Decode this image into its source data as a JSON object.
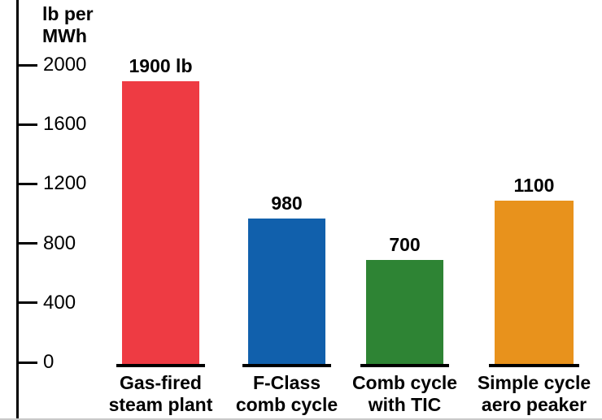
{
  "chart_data": {
    "type": "bar",
    "title": "",
    "ylabel": "lb per MWh",
    "ylabel_lines": [
      "lb per",
      "MWh"
    ],
    "ylim": [
      0,
      2000
    ],
    "yticks": [
      2000,
      1600,
      1200,
      800,
      400,
      0
    ],
    "grid": false,
    "legend": false,
    "categories": [
      "Gas-fired steam plant",
      "F-Class comb cycle",
      "Comb cycle with TIC",
      "Simple cycle aero peaker"
    ],
    "category_lines": [
      [
        "Gas-fired",
        "steam plant"
      ],
      [
        "F-Class",
        "comb cycle"
      ],
      [
        "Comb cycle",
        "with TIC"
      ],
      [
        "Simple cycle",
        "aero peaker"
      ]
    ],
    "values": [
      1900,
      980,
      700,
      1100
    ],
    "value_labels": [
      "1900 lb",
      "980",
      "700",
      "1100"
    ],
    "bar_colors": [
      "#ee3b43",
      "#1160ac",
      "#2e8434",
      "#e8921c"
    ],
    "axis_color": "#000000",
    "text_color": "#000000"
  }
}
